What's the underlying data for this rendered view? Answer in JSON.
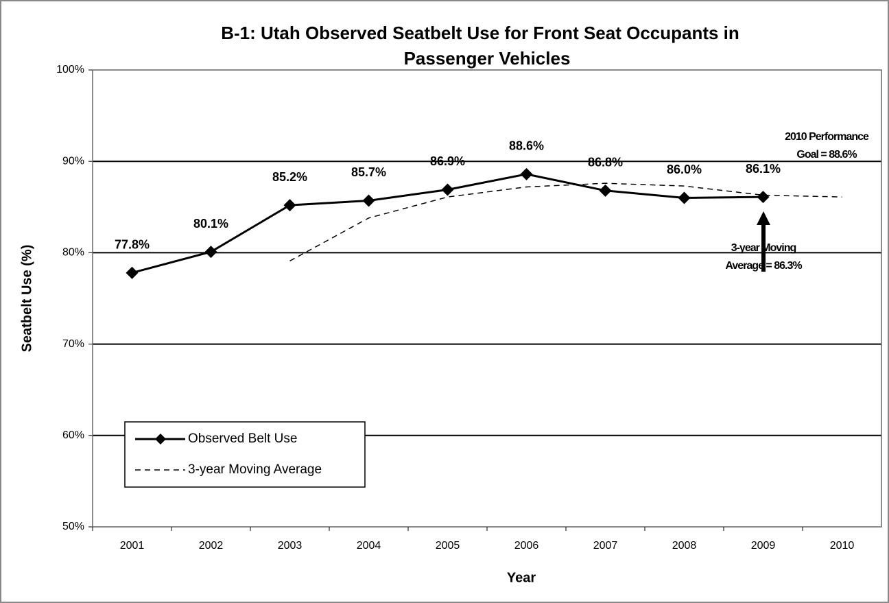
{
  "chart_data": {
    "type": "line",
    "title": [
      "B-1: Utah Observed Seatbelt Use for Front Seat Occupants in",
      "Passenger Vehicles"
    ],
    "x_label": "Year",
    "y_label": "Seatbelt Use (%)",
    "categories": [
      "2001",
      "2002",
      "2003",
      "2004",
      "2005",
      "2006",
      "2007",
      "2008",
      "2009",
      "2010"
    ],
    "series": [
      {
        "name": "Observed Belt Use",
        "color": "#000000",
        "style": "solid",
        "marker": "diamond",
        "values": [
          77.8,
          80.1,
          85.2,
          85.7,
          86.9,
          88.6,
          86.8,
          86.0,
          86.1,
          null
        ],
        "value_labels": [
          "77.8%",
          "80.1%",
          "85.2%",
          "85.7%",
          "86.9%",
          "88.6%",
          "86.8%",
          "86.0%",
          "86.1%",
          null
        ]
      },
      {
        "name": "3-year Moving Average",
        "color": "#000000",
        "style": "dashed",
        "values": [
          null,
          null,
          79.1,
          83.8,
          86.1,
          87.2,
          87.6,
          87.3,
          86.3,
          86.1
        ]
      }
    ],
    "ylim": [
      50,
      100
    ],
    "yticks": [
      {
        "value": 50,
        "label": "50%"
      },
      {
        "value": 60,
        "label": "60%"
      },
      {
        "value": 70,
        "label": "70%"
      },
      {
        "value": 80,
        "label": "80%"
      },
      {
        "value": 90,
        "label": "90%"
      },
      {
        "value": 100,
        "label": "100%"
      }
    ],
    "grid": true,
    "legend": "lower left",
    "annotations": [
      [
        "2010 Performance",
        "Goal = 88.6%"
      ],
      [
        "3-year Moving",
        "Average = 86.3%"
      ]
    ]
  }
}
